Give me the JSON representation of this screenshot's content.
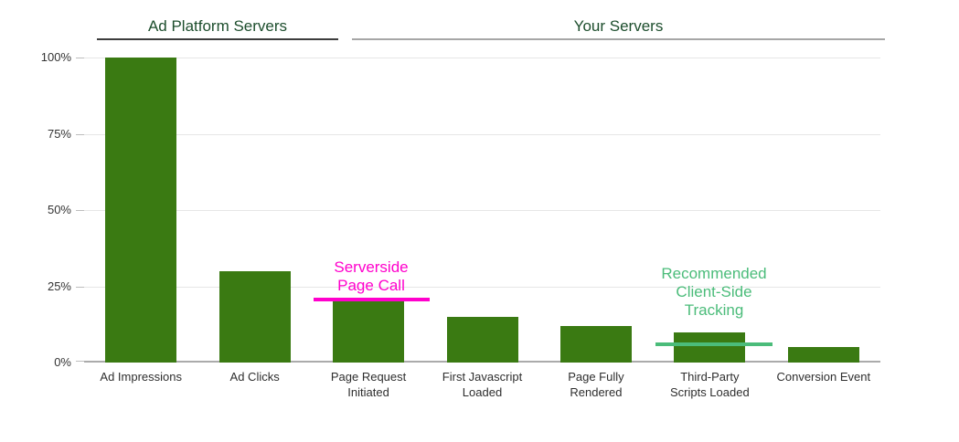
{
  "chart_data": {
    "type": "bar",
    "title": "",
    "categories": [
      "Ad Impressions",
      "Ad Clicks",
      "Page Request\nInitiated",
      "First Javascript\nLoaded",
      "Page Fully\nRendered",
      "Third-Party\nScripts Loaded",
      "Conversion Event"
    ],
    "values": [
      100,
      30,
      20,
      15,
      12,
      10,
      5
    ],
    "unit": "%",
    "xlabel": "",
    "ylabel": "",
    "ylim": [
      0,
      100
    ],
    "yticks": [
      {
        "value": 100,
        "label": "100%"
      },
      {
        "value": 75,
        "label": "75%"
      },
      {
        "value": 50,
        "label": "50%"
      },
      {
        "value": 25,
        "label": "25%"
      },
      {
        "value": 0,
        "label": "0%"
      }
    ],
    "grid": true,
    "legend": "none",
    "bar_color": "#3a7a12",
    "gridline_color": "#e6e6e6",
    "baseline_color": "#ababab",
    "tick_color": "#bdbdbd",
    "axis_text_color": "#2e2e2e",
    "group_headers": [
      {
        "label": "Ad Platform Servers",
        "text_color": "#1d4e2d",
        "underline_color": "#3d3d3d",
        "covers": [
          "Ad Impressions",
          "Ad Clicks"
        ]
      },
      {
        "label": "Your Servers",
        "text_color": "#1d4e2d",
        "underline_color": "#a6a6a6",
        "covers": [
          "Page Request Initiated",
          "First Javascript Loaded",
          "Page Fully Rendered",
          "Third-Party Scripts Loaded",
          "Conversion Event"
        ]
      }
    ],
    "annotations": [
      {
        "text": "Serverside\nPage Call",
        "value": 20,
        "color": "#ff00cc",
        "has_line": true,
        "target": "Page Request Initiated"
      },
      {
        "text": "Recommended\nClient-Side\nTracking",
        "value": 6,
        "color": "#4bbc7a",
        "has_line": true,
        "target": "Third-Party Scripts Loaded"
      }
    ]
  }
}
